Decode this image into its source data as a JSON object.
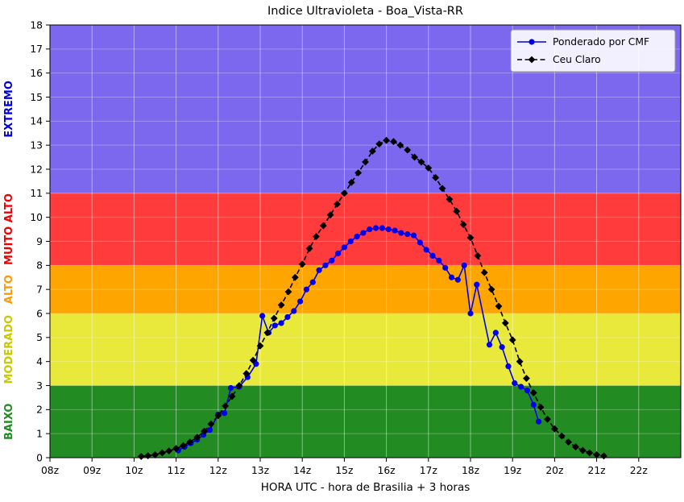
{
  "chart_data": {
    "type": "line",
    "title": "Indice Ultravioleta - Boa_Vista-RR",
    "xlabel": "HORA UTC - hora de Brasilia + 3 horas",
    "ylabel": "",
    "xlim": [
      8,
      23
    ],
    "ylim": [
      0,
      18
    ],
    "grid": true,
    "legend_position": "upper right",
    "x_ticks": [
      {
        "v": 8,
        "label": "08z"
      },
      {
        "v": 9,
        "label": "09z"
      },
      {
        "v": 10,
        "label": "10z"
      },
      {
        "v": 11,
        "label": "11z"
      },
      {
        "v": 12,
        "label": "12z"
      },
      {
        "v": 13,
        "label": "13z"
      },
      {
        "v": 14,
        "label": "14z"
      },
      {
        "v": 15,
        "label": "15z"
      },
      {
        "v": 16,
        "label": "16z"
      },
      {
        "v": 17,
        "label": "17z"
      },
      {
        "v": 18,
        "label": "18z"
      },
      {
        "v": 19,
        "label": "19z"
      },
      {
        "v": 20,
        "label": "20z"
      },
      {
        "v": 21,
        "label": "21z"
      },
      {
        "v": 22,
        "label": "22z"
      }
    ],
    "y_ticks": [
      0,
      1,
      2,
      3,
      4,
      5,
      6,
      7,
      8,
      9,
      10,
      11,
      12,
      13,
      14,
      15,
      16,
      17,
      18
    ],
    "bands": [
      {
        "label": "BAIXO",
        "from": 0,
        "to": 3,
        "color": "#228B22",
        "label_color": "#228B22"
      },
      {
        "label": "MODERADO",
        "from": 3,
        "to": 6,
        "color": "#E9E93B",
        "label_color": "#C9C900"
      },
      {
        "label": "ALTO",
        "from": 6,
        "to": 8,
        "color": "#FFA500",
        "label_color": "#FF9900"
      },
      {
        "label": "MUITO ALTO",
        "from": 8,
        "to": 11,
        "color": "#FF3B3B",
        "label_color": "#EE0000"
      },
      {
        "label": "EXTREMO",
        "from": 11,
        "to": 18,
        "color": "#7B68EE",
        "label_color": "#0000DD"
      }
    ],
    "series": [
      {
        "name": "Ponderado por CMF",
        "color": "#0000EE",
        "line": "solid",
        "marker": "circle",
        "points": [
          [
            11.05,
            0.3
          ],
          [
            11.2,
            0.45
          ],
          [
            11.35,
            0.6
          ],
          [
            11.5,
            0.75
          ],
          [
            11.65,
            0.95
          ],
          [
            11.8,
            1.15
          ],
          [
            12.0,
            1.8
          ],
          [
            12.15,
            1.85
          ],
          [
            12.3,
            2.9
          ],
          [
            12.5,
            2.95
          ],
          [
            12.7,
            3.35
          ],
          [
            12.9,
            3.9
          ],
          [
            13.05,
            5.9
          ],
          [
            13.2,
            5.2
          ],
          [
            13.35,
            5.5
          ],
          [
            13.5,
            5.6
          ],
          [
            13.65,
            5.85
          ],
          [
            13.8,
            6.1
          ],
          [
            13.95,
            6.5
          ],
          [
            14.1,
            7.0
          ],
          [
            14.25,
            7.3
          ],
          [
            14.4,
            7.8
          ],
          [
            14.55,
            8.0
          ],
          [
            14.7,
            8.2
          ],
          [
            14.85,
            8.5
          ],
          [
            15.0,
            8.75
          ],
          [
            15.15,
            9.0
          ],
          [
            15.3,
            9.2
          ],
          [
            15.45,
            9.35
          ],
          [
            15.6,
            9.5
          ],
          [
            15.75,
            9.55
          ],
          [
            15.9,
            9.55
          ],
          [
            16.05,
            9.5
          ],
          [
            16.2,
            9.45
          ],
          [
            16.35,
            9.35
          ],
          [
            16.5,
            9.3
          ],
          [
            16.65,
            9.25
          ],
          [
            16.8,
            8.95
          ],
          [
            16.95,
            8.65
          ],
          [
            17.1,
            8.4
          ],
          [
            17.25,
            8.2
          ],
          [
            17.4,
            7.9
          ],
          [
            17.55,
            7.5
          ],
          [
            17.7,
            7.4
          ],
          [
            17.85,
            8.0
          ],
          [
            18.0,
            6.0
          ],
          [
            18.15,
            7.2
          ],
          [
            18.45,
            4.7
          ],
          [
            18.6,
            5.2
          ],
          [
            18.75,
            4.6
          ],
          [
            18.9,
            3.8
          ],
          [
            19.05,
            3.1
          ],
          [
            19.2,
            2.95
          ],
          [
            19.35,
            2.8
          ],
          [
            19.5,
            2.2
          ],
          [
            19.62,
            1.5
          ]
        ]
      },
      {
        "name": "Ceu Claro",
        "color": "#000000",
        "line": "dashed",
        "marker": "diamond",
        "points": [
          [
            10.17,
            0.05
          ],
          [
            10.33,
            0.08
          ],
          [
            10.5,
            0.12
          ],
          [
            10.67,
            0.2
          ],
          [
            10.83,
            0.28
          ],
          [
            11.0,
            0.38
          ],
          [
            11.17,
            0.5
          ],
          [
            11.33,
            0.65
          ],
          [
            11.5,
            0.85
          ],
          [
            11.67,
            1.1
          ],
          [
            11.83,
            1.4
          ],
          [
            12.0,
            1.75
          ],
          [
            12.17,
            2.15
          ],
          [
            12.33,
            2.55
          ],
          [
            12.5,
            3.0
          ],
          [
            12.67,
            3.5
          ],
          [
            12.83,
            4.05
          ],
          [
            13.0,
            4.65
          ],
          [
            13.17,
            5.2
          ],
          [
            13.33,
            5.8
          ],
          [
            13.5,
            6.35
          ],
          [
            13.67,
            6.9
          ],
          [
            13.83,
            7.5
          ],
          [
            14.0,
            8.05
          ],
          [
            14.17,
            8.7
          ],
          [
            14.33,
            9.2
          ],
          [
            14.5,
            9.65
          ],
          [
            14.67,
            10.1
          ],
          [
            14.83,
            10.55
          ],
          [
            15.0,
            11.0
          ],
          [
            15.17,
            11.45
          ],
          [
            15.33,
            11.85
          ],
          [
            15.5,
            12.3
          ],
          [
            15.67,
            12.75
          ],
          [
            15.83,
            13.05
          ],
          [
            16.0,
            13.2
          ],
          [
            16.17,
            13.15
          ],
          [
            16.33,
            13.0
          ],
          [
            16.5,
            12.8
          ],
          [
            16.67,
            12.5
          ],
          [
            16.83,
            12.3
          ],
          [
            17.0,
            12.05
          ],
          [
            17.17,
            11.65
          ],
          [
            17.33,
            11.2
          ],
          [
            17.5,
            10.75
          ],
          [
            17.67,
            10.25
          ],
          [
            17.83,
            9.7
          ],
          [
            18.0,
            9.15
          ],
          [
            18.17,
            8.4
          ],
          [
            18.33,
            7.7
          ],
          [
            18.5,
            7.0
          ],
          [
            18.67,
            6.3
          ],
          [
            18.83,
            5.6
          ],
          [
            19.0,
            4.9
          ],
          [
            19.17,
            4.0
          ],
          [
            19.33,
            3.3
          ],
          [
            19.5,
            2.7
          ],
          [
            19.67,
            2.1
          ],
          [
            19.83,
            1.6
          ],
          [
            20.0,
            1.2
          ],
          [
            20.17,
            0.9
          ],
          [
            20.33,
            0.65
          ],
          [
            20.5,
            0.45
          ],
          [
            20.67,
            0.3
          ],
          [
            20.83,
            0.2
          ],
          [
            21.0,
            0.12
          ],
          [
            21.17,
            0.07
          ]
        ]
      }
    ]
  }
}
